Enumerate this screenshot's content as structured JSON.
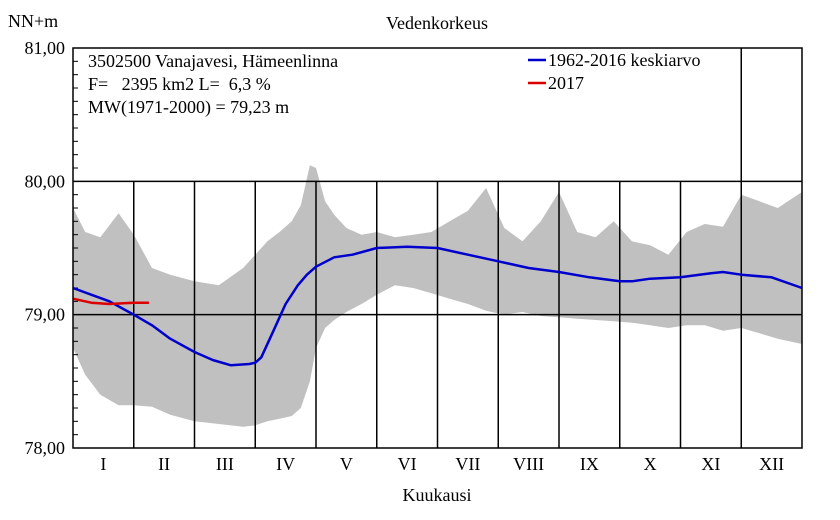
{
  "chart_data": {
    "type": "area",
    "title": "Vedenkorkeus",
    "ylabel": "NN+m",
    "xlabel": "Kuukausi",
    "ylim": [
      78.0,
      81.0
    ],
    "yticks": [
      "78,00",
      "79,00",
      "80,00",
      "81,00"
    ],
    "months": [
      "I",
      "II",
      "III",
      "IV",
      "V",
      "VI",
      "VII",
      "VIII",
      "IX",
      "X",
      "XI",
      "XII"
    ],
    "info": [
      "3502500 Vanajavesi, Hämeenlinna",
      "F=   2395 km2 L=  6,3 %",
      "MW(1971-2000) = 79,23 m"
    ],
    "legend_position": "top-right",
    "colors": {
      "band": "#c0c0c0",
      "mean": "#0000cc",
      "current": "#dd0000"
    },
    "envelope": {
      "x": [
        0,
        0.2,
        0.45,
        0.75,
        1.0,
        1.3,
        1.6,
        2.0,
        2.4,
        2.8,
        3.0,
        3.2,
        3.4,
        3.6,
        3.75,
        3.9,
        4.0,
        4.15,
        4.3,
        4.5,
        4.75,
        5.0,
        5.3,
        5.6,
        5.9,
        6.2,
        6.5,
        6.8,
        7.1,
        7.4,
        7.7,
        8.0,
        8.3,
        8.6,
        8.9,
        9.2,
        9.5,
        9.8,
        10.1,
        10.4,
        10.7,
        11.0,
        11.3,
        11.6,
        12.0
      ],
      "upper": [
        79.8,
        79.62,
        79.58,
        79.76,
        79.6,
        79.35,
        79.3,
        79.25,
        79.22,
        79.35,
        79.45,
        79.55,
        79.62,
        79.7,
        79.82,
        80.12,
        80.1,
        79.85,
        79.75,
        79.65,
        79.6,
        79.62,
        79.58,
        79.6,
        79.62,
        79.7,
        79.78,
        79.95,
        79.65,
        79.55,
        79.7,
        79.92,
        79.62,
        79.58,
        79.7,
        79.55,
        79.52,
        79.45,
        79.62,
        79.68,
        79.66,
        79.9,
        79.85,
        79.8,
        79.92
      ],
      "lower": [
        78.75,
        78.55,
        78.4,
        78.32,
        78.32,
        78.31,
        78.25,
        78.2,
        78.18,
        78.16,
        78.17,
        78.2,
        78.22,
        78.24,
        78.3,
        78.5,
        78.75,
        78.9,
        78.96,
        79.02,
        79.08,
        79.15,
        79.22,
        79.2,
        79.16,
        79.12,
        79.08,
        79.03,
        79.0,
        79.02,
        78.99,
        78.98,
        78.97,
        78.96,
        78.95,
        78.94,
        78.92,
        78.9,
        78.92,
        78.92,
        78.88,
        78.9,
        78.86,
        78.82,
        78.78
      ]
    },
    "series": [
      {
        "name": "1962-2016 keskiarvo",
        "x": [
          0,
          0.3,
          0.6,
          1.0,
          1.3,
          1.6,
          2.0,
          2.3,
          2.6,
          2.9,
          3.0,
          3.1,
          3.3,
          3.5,
          3.7,
          3.85,
          4.0,
          4.3,
          4.6,
          5.0,
          5.5,
          6.0,
          6.5,
          7.0,
          7.5,
          8.0,
          8.5,
          9.0,
          9.2,
          9.5,
          10.0,
          10.5,
          10.7,
          11.0,
          11.5,
          12.0
        ],
        "y": [
          79.2,
          79.15,
          79.1,
          79.0,
          78.92,
          78.82,
          78.72,
          78.66,
          78.62,
          78.63,
          78.64,
          78.68,
          78.88,
          79.08,
          79.22,
          79.3,
          79.36,
          79.43,
          79.45,
          79.5,
          79.51,
          79.5,
          79.45,
          79.4,
          79.35,
          79.32,
          79.28,
          79.25,
          79.25,
          79.27,
          79.28,
          79.31,
          79.32,
          79.3,
          79.28,
          79.2
        ]
      },
      {
        "name": "2017",
        "x": [
          0,
          0.3,
          0.6,
          1.0,
          1.25
        ],
        "y": [
          79.12,
          79.09,
          79.08,
          79.09,
          79.09
        ]
      }
    ]
  }
}
